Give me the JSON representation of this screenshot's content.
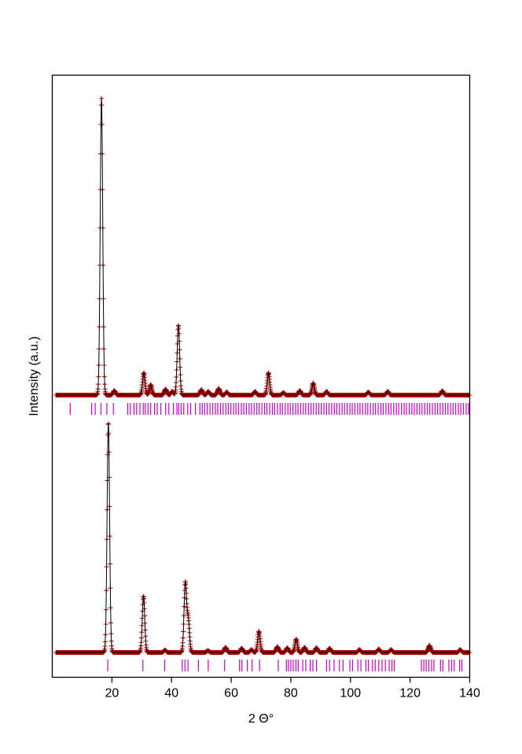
{
  "chart_data": {
    "type": "line",
    "xlabel": "2 Θ°",
    "ylabel": "Intensity (a.u.)",
    "xlim": [
      0,
      140
    ],
    "x_ticks": [
      20,
      40,
      60,
      80,
      100,
      120,
      140
    ],
    "y_ticks": "none",
    "grid": false,
    "legend": "none",
    "colors": {
      "observed": "#b00000",
      "calculated": "#000000",
      "bragg_marks": "#cc00cc",
      "frame": "#000000"
    },
    "panels": [
      {
        "id": "top",
        "background": 0.0,
        "peaks": [
          {
            "pos": 16.5,
            "height": 1.0
          },
          {
            "pos": 20.8,
            "height": 0.015
          },
          {
            "pos": 30.7,
            "height": 0.075
          },
          {
            "pos": 33.0,
            "height": 0.035
          },
          {
            "pos": 38.0,
            "height": 0.02
          },
          {
            "pos": 40.2,
            "height": 0.012
          },
          {
            "pos": 42.3,
            "height": 0.235
          },
          {
            "pos": 50.0,
            "height": 0.018
          },
          {
            "pos": 52.3,
            "height": 0.012
          },
          {
            "pos": 55.8,
            "height": 0.022
          },
          {
            "pos": 58.5,
            "height": 0.01
          },
          {
            "pos": 68.0,
            "height": 0.012
          },
          {
            "pos": 72.5,
            "height": 0.075
          },
          {
            "pos": 77.5,
            "height": 0.008
          },
          {
            "pos": 83.0,
            "height": 0.015
          },
          {
            "pos": 87.5,
            "height": 0.04
          },
          {
            "pos": 92.0,
            "height": 0.012
          },
          {
            "pos": 106.0,
            "height": 0.01
          },
          {
            "pos": 112.5,
            "height": 0.012
          },
          {
            "pos": 130.8,
            "height": 0.014
          }
        ],
        "bragg_positions": [
          6.0,
          13.2,
          14.4,
          16.3,
          18.3,
          20.5,
          25.3,
          26.2,
          27.4,
          28.3,
          29.4,
          30.5,
          31.2,
          32.1,
          33.0,
          34.3,
          35.2,
          36.4,
          38.0,
          39.1,
          40.6,
          41.8,
          42.4,
          43.2,
          44.1,
          45.4,
          46.4,
          48.0,
          49.5,
          50.3,
          51.1,
          52.0,
          52.9,
          53.8,
          54.7,
          55.5,
          56.4,
          57.3,
          58.2,
          59.0,
          59.9,
          60.8,
          61.6,
          62.5,
          63.4,
          64.2,
          65.1,
          66.0,
          66.8,
          67.7,
          68.6,
          69.4,
          70.3,
          71.2,
          72.0,
          72.9,
          73.8,
          74.6,
          75.5,
          76.4,
          77.2,
          78.1,
          79.0,
          79.8,
          80.7,
          81.6,
          82.4,
          83.3,
          84.2,
          85.0,
          85.9,
          86.8,
          87.6,
          88.5,
          89.4,
          90.2,
          91.1,
          92.0,
          92.8,
          93.7,
          94.6,
          95.4,
          96.3,
          97.2,
          98.0,
          98.9,
          99.8,
          100.6,
          101.5,
          102.4,
          103.2,
          104.1,
          105.0,
          105.8,
          106.7,
          107.6,
          108.4,
          109.3,
          110.2,
          111.0,
          111.9,
          112.8,
          113.6,
          114.5,
          115.4,
          116.2,
          117.1,
          118.0,
          118.8,
          119.7,
          120.6,
          121.4,
          122.3,
          123.2,
          124.0,
          124.9,
          125.8,
          126.6,
          127.5,
          128.4,
          129.2,
          130.1,
          131.0,
          131.8,
          132.7,
          133.6,
          134.4,
          135.3,
          136.2,
          137.0,
          137.9,
          138.8,
          139.6
        ]
      },
      {
        "id": "bottom",
        "background": 0.0,
        "peaks": [
          {
            "pos": 18.8,
            "height": 1.0
          },
          {
            "pos": 30.6,
            "height": 0.245
          },
          {
            "pos": 37.8,
            "height": 0.01
          },
          {
            "pos": 44.6,
            "height": 0.3
          },
          {
            "pos": 45.6,
            "height": 0.14
          },
          {
            "pos": 52.2,
            "height": 0.008
          },
          {
            "pos": 58.1,
            "height": 0.022
          },
          {
            "pos": 63.5,
            "height": 0.018
          },
          {
            "pos": 66.8,
            "height": 0.012
          },
          {
            "pos": 69.3,
            "height": 0.092
          },
          {
            "pos": 75.5,
            "height": 0.025
          },
          {
            "pos": 78.8,
            "height": 0.02
          },
          {
            "pos": 81.8,
            "height": 0.058
          },
          {
            "pos": 84.6,
            "height": 0.022
          },
          {
            "pos": 88.6,
            "height": 0.02
          },
          {
            "pos": 93.0,
            "height": 0.018
          },
          {
            "pos": 103.0,
            "height": 0.012
          },
          {
            "pos": 109.5,
            "height": 0.014
          },
          {
            "pos": 113.6,
            "height": 0.012
          },
          {
            "pos": 126.5,
            "height": 0.03
          },
          {
            "pos": 136.8,
            "height": 0.012
          }
        ],
        "bragg_positions": [
          18.6,
          30.4,
          37.7,
          43.6,
          44.5,
          45.5,
          49.0,
          52.3,
          57.8,
          62.8,
          63.6,
          65.4,
          67.0,
          69.5,
          75.8,
          78.5,
          79.2,
          80.0,
          80.8,
          81.7,
          82.5,
          84.0,
          85.0,
          86.5,
          87.4,
          88.6,
          92.0,
          93.0,
          94.5,
          96.3,
          97.5,
          99.8,
          100.7,
          102.5,
          103.5,
          105.2,
          106.0,
          107.4,
          108.3,
          109.5,
          110.6,
          111.7,
          113.0,
          113.9,
          114.7,
          123.8,
          124.6,
          125.4,
          126.3,
          127.2,
          128.0,
          130.2,
          131.0,
          133.0,
          133.9,
          134.8,
          136.6,
          137.4
        ]
      }
    ]
  }
}
